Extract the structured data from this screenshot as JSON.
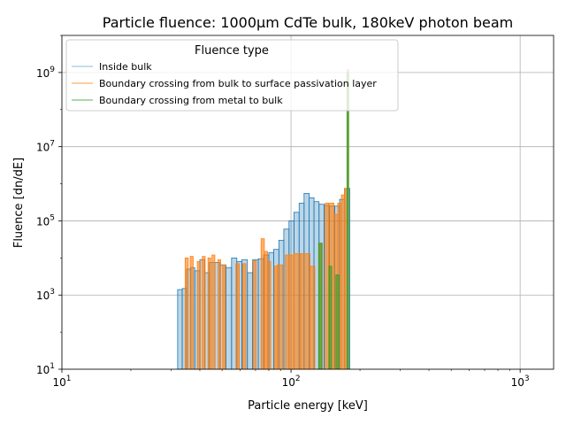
{
  "chart_data": {
    "type": "histogram",
    "title": "Particle fluence: 1000μm CdTe bulk, 180keV photon beam",
    "xlabel": "Particle energy [keV]",
    "ylabel": "Fluence [dn/dE]",
    "xscale": "log",
    "yscale": "log",
    "xlim": [
      10,
      1400
    ],
    "ylim": [
      10,
      10000000000
    ],
    "x_tick_labels": [
      "10^1",
      "10^2",
      "10^3"
    ],
    "y_tick_labels": [
      "10^1",
      "10^3",
      "10^5",
      "10^7",
      "10^9"
    ],
    "grid": true,
    "legend": {
      "title": "Fluence type",
      "placement": "upper-left"
    },
    "series": [
      {
        "name": "Inside bulk",
        "color": "#1f77b4",
        "fill_opacity": 0.3,
        "bins": [
          [
            32.0,
            33.5,
            1400
          ],
          [
            33.5,
            35.0,
            1500
          ],
          [
            35.0,
            36.5,
            5000
          ],
          [
            36.5,
            38.0,
            5500
          ],
          [
            38.0,
            40.0,
            4500
          ],
          [
            40.0,
            42.0,
            9000
          ],
          [
            42.0,
            44.0,
            4000
          ],
          [
            44.0,
            46.5,
            7500
          ],
          [
            46.5,
            49.0,
            7500
          ],
          [
            49.0,
            52.0,
            6500
          ],
          [
            52.0,
            55.0,
            5500
          ],
          [
            55.0,
            58.0,
            10000
          ],
          [
            58.0,
            61.0,
            8000
          ],
          [
            61.0,
            64.5,
            9000
          ],
          [
            64.5,
            68.0,
            4000
          ],
          [
            68.0,
            72.0,
            9000
          ],
          [
            72.0,
            76.0,
            9500
          ],
          [
            76.0,
            80.0,
            12000
          ],
          [
            80.0,
            84.0,
            14000
          ],
          [
            84.0,
            88.5,
            17000
          ],
          [
            88.5,
            93.0,
            30000
          ],
          [
            93.0,
            98.0,
            60000
          ],
          [
            98.0,
            103.0,
            100000
          ],
          [
            103.0,
            108.5,
            170000
          ],
          [
            108.5,
            114.0,
            300000
          ],
          [
            114.0,
            120.0,
            550000
          ],
          [
            120.0,
            126.0,
            420000
          ],
          [
            126.0,
            132.5,
            330000
          ],
          [
            132.5,
            139.5,
            280000
          ],
          [
            139.5,
            147.0,
            260000
          ],
          [
            147.0,
            155.0,
            250000
          ],
          [
            155.0,
            163.0,
            250000
          ],
          [
            163.0,
            171.5,
            380000
          ],
          [
            171.5,
            180.5,
            750000
          ]
        ]
      },
      {
        "name": "Boundary crossing from bulk to surface passivation layer",
        "color": "#ff7f0e",
        "fill_opacity": 0.6,
        "bins": [
          [
            34.5,
            35.6,
            10000
          ],
          [
            36.3,
            37.4,
            11000
          ],
          [
            39.0,
            40.2,
            8000
          ],
          [
            41.0,
            42.2,
            11000
          ],
          [
            43.4,
            44.6,
            10000
          ],
          [
            45.2,
            46.5,
            12000
          ],
          [
            48.0,
            49.3,
            9000
          ],
          [
            50.3,
            51.7,
            6500
          ],
          [
            57.5,
            59.5,
            7000
          ],
          [
            61.5,
            63.5,
            7000
          ],
          [
            68.5,
            70.5,
            8500
          ],
          [
            74.0,
            76.5,
            33000
          ],
          [
            76.5,
            79.0,
            15000
          ],
          [
            79.0,
            81.5,
            8000
          ],
          [
            84.5,
            87.0,
            6000
          ],
          [
            87.0,
            92.0,
            6500
          ],
          [
            94.5,
            98.0,
            12000
          ],
          [
            98.0,
            103.0,
            12000
          ],
          [
            103.0,
            110.0,
            13000
          ],
          [
            110.0,
            121.0,
            13000
          ],
          [
            121.0,
            127.0,
            6000
          ],
          [
            132.0,
            137.0,
            25000
          ],
          [
            141.0,
            146.0,
            300000
          ],
          [
            146.0,
            154.0,
            300000
          ],
          [
            154.0,
            160.0,
            150000
          ],
          [
            160.0,
            166.0,
            300000
          ],
          [
            166.0,
            171.0,
            500000
          ],
          [
            171.0,
            175.5,
            750000
          ],
          [
            175.5,
            178.5,
            1200000000
          ]
        ]
      },
      {
        "name": "Boundary crossing from metal to bulk",
        "color": "#2ca02c",
        "fill_opacity": 0.6,
        "bins": [
          [
            132.0,
            136.5,
            25000
          ],
          [
            146.5,
            150.5,
            6000
          ],
          [
            157.0,
            162.0,
            3500
          ],
          [
            175.5,
            178.5,
            1000000000
          ]
        ]
      }
    ]
  }
}
